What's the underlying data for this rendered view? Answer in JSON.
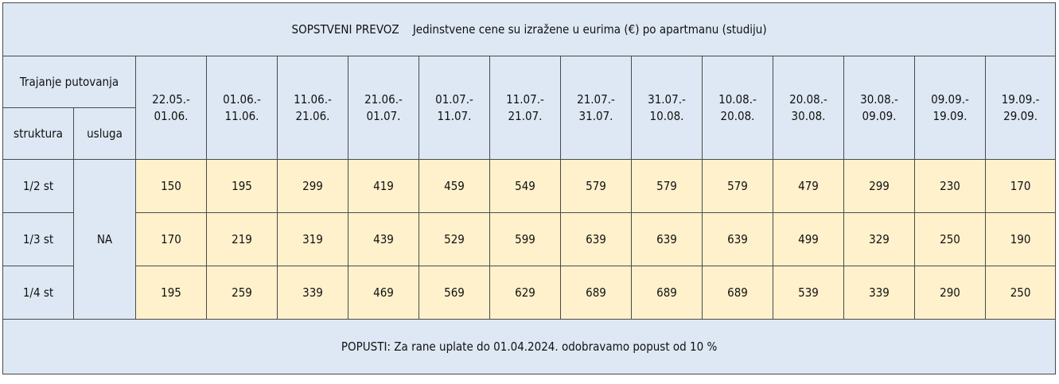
{
  "title": {
    "transport": "SOPSTVENI PREVOZ",
    "note": "Jedinstvene cene su izražene u eurima (€) po apartmanu (studiju)"
  },
  "header": {
    "duration_label": "Trajanje putovanja",
    "structure_label": "struktura",
    "service_label": "usluga"
  },
  "periods": [
    {
      "from": "22.05.-",
      "to": "01.06."
    },
    {
      "from": "01.06.-",
      "to": "11.06."
    },
    {
      "from": "11.06.-",
      "to": "21.06."
    },
    {
      "from": "21.06.-",
      "to": "01.07."
    },
    {
      "from": "01.07.-",
      "to": "11.07."
    },
    {
      "from": "11.07.-",
      "to": "21.07."
    },
    {
      "from": "21.07.-",
      "to": "31.07."
    },
    {
      "from": "31.07.-",
      "to": "10.08."
    },
    {
      "from": "10.08.-",
      "to": "20.08."
    },
    {
      "from": "20.08.-",
      "to": "30.08."
    },
    {
      "from": "30.08.-",
      "to": "09.09."
    },
    {
      "from": "09.09.-",
      "to": "19.09."
    },
    {
      "from": "19.09.-",
      "to": "29.09."
    }
  ],
  "service": "NA",
  "rows": [
    {
      "structure": "1/2 st",
      "prices": [
        "150",
        "195",
        "299",
        "419",
        "459",
        "549",
        "579",
        "579",
        "579",
        "479",
        "299",
        "230",
        "170"
      ]
    },
    {
      "structure": "1/3 st",
      "prices": [
        "170",
        "219",
        "319",
        "439",
        "529",
        "599",
        "639",
        "639",
        "639",
        "499",
        "329",
        "250",
        "190"
      ]
    },
    {
      "structure": "1/4 st",
      "prices": [
        "195",
        "259",
        "339",
        "469",
        "569",
        "629",
        "689",
        "689",
        "689",
        "539",
        "339",
        "290",
        "250"
      ]
    }
  ],
  "footer": "POPUSTI: Za rane uplate do 01.04.2024. odobravamo popust od 10 %",
  "colors": {
    "header_bg": "#dde8f4",
    "price_bg": "#fff1cc",
    "border": "#4a4a4a"
  }
}
